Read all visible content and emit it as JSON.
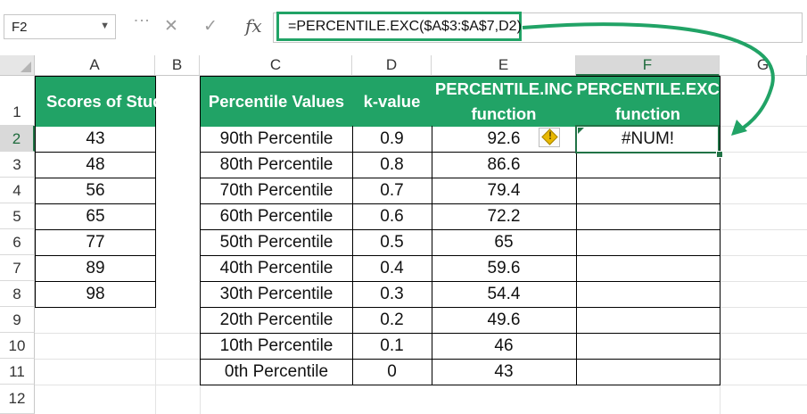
{
  "formula_bar": {
    "name_box": "F2",
    "cancel_icon": "✕",
    "enter_icon": "✓",
    "fx_label": "fx",
    "formula": "=PERCENTILE.EXC($A$3:$A$7,D2)"
  },
  "columns": [
    "A",
    "B",
    "C",
    "D",
    "E",
    "F",
    "G"
  ],
  "rows": [
    "1",
    "2",
    "3",
    "4",
    "5",
    "6",
    "7",
    "8",
    "9",
    "10",
    "11",
    "12"
  ],
  "scores_table": {
    "header": "Scores of Students",
    "values": [
      "43",
      "48",
      "56",
      "65",
      "77",
      "89",
      "98"
    ]
  },
  "percentile_table": {
    "headers": [
      "Percentile Values",
      "k-value",
      "PERCENTILE.INC function",
      "PERCENTILE.EXC function"
    ],
    "rows": [
      [
        "90th Percentile",
        "0.9",
        "92.6",
        "#NUM!"
      ],
      [
        "80th Percentile",
        "0.8",
        "86.6",
        ""
      ],
      [
        "70th Percentile",
        "0.7",
        "79.4",
        ""
      ],
      [
        "60th Percentile",
        "0.6",
        "72.2",
        ""
      ],
      [
        "50th Percentile",
        "0.5",
        "65",
        ""
      ],
      [
        "40th Percentile",
        "0.4",
        "59.6",
        ""
      ],
      [
        "30th Percentile",
        "0.3",
        "54.4",
        ""
      ],
      [
        "20th Percentile",
        "0.2",
        "49.6",
        ""
      ],
      [
        "10th Percentile",
        "0.1",
        "46",
        ""
      ],
      [
        "0th Percentile",
        "0",
        "43",
        ""
      ]
    ]
  },
  "active_cell": "F2",
  "colors": {
    "header_green": "#21A366",
    "selection_green": "#217346",
    "warning_yellow": "#E8B800"
  }
}
